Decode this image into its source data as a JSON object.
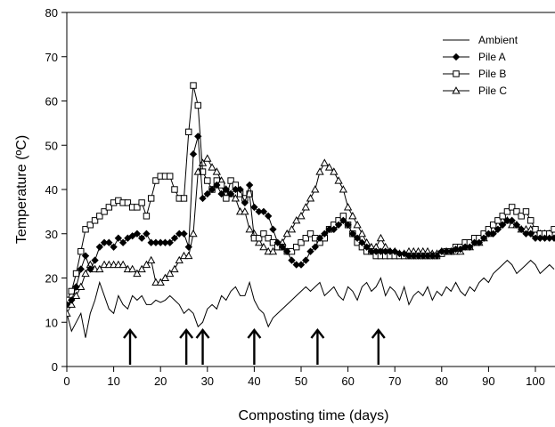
{
  "chart_data": {
    "type": "line",
    "title": "",
    "xlabel": "Composting time (days)",
    "ylabel": "Temperature (ºC)",
    "xlim": [
      0,
      104
    ],
    "ylim": [
      0,
      80
    ],
    "x_ticks": [
      0,
      10,
      20,
      30,
      40,
      50,
      60,
      70,
      80,
      90,
      100
    ],
    "y_ticks": [
      0,
      10,
      20,
      30,
      40,
      50,
      60,
      70,
      80
    ],
    "grid": false,
    "legend_position": "top-right",
    "turning_arrows_days": [
      13.5,
      25.5,
      29,
      40,
      53.5,
      66.5
    ],
    "series": [
      {
        "name": "Ambient",
        "marker": "none",
        "x": [
          0,
          1,
          2,
          3,
          4,
          5,
          6,
          7,
          8,
          9,
          10,
          11,
          12,
          13,
          14,
          15,
          16,
          17,
          18,
          19,
          20,
          21,
          22,
          23,
          24,
          25,
          26,
          27,
          28,
          29,
          30,
          31,
          32,
          33,
          34,
          35,
          36,
          37,
          38,
          39,
          40,
          41,
          42,
          43,
          44,
          45,
          46,
          47,
          48,
          49,
          50,
          51,
          52,
          53,
          54,
          55,
          56,
          57,
          58,
          59,
          60,
          61,
          62,
          63,
          64,
          65,
          66,
          67,
          68,
          69,
          70,
          71,
          72,
          73,
          74,
          75,
          76,
          77,
          78,
          79,
          80,
          81,
          82,
          83,
          84,
          85,
          86,
          87,
          88,
          89,
          90,
          91,
          92,
          93,
          94,
          95,
          96,
          97,
          98,
          99,
          100,
          101,
          102,
          103,
          104
        ],
        "values": [
          12,
          8,
          10,
          12,
          6.5,
          12,
          15,
          19,
          16,
          13,
          12,
          16,
          14,
          13,
          16,
          15,
          16,
          14,
          14,
          15,
          14.5,
          15,
          16,
          15,
          14,
          12,
          13,
          12,
          9,
          10,
          13,
          14,
          13,
          16,
          15,
          17,
          18,
          16,
          16,
          19,
          15,
          13,
          12,
          9,
          11,
          12,
          13,
          14,
          15,
          16,
          17,
          18,
          17,
          18,
          19,
          16,
          17,
          18,
          16,
          15,
          18,
          17,
          15,
          18,
          19,
          17,
          18,
          20,
          16,
          18,
          17,
          15,
          18,
          14,
          16,
          17,
          16,
          18,
          15,
          17,
          16,
          18,
          17,
          19,
          17,
          16,
          18,
          17,
          19,
          20,
          19,
          21,
          22,
          23,
          24,
          23,
          21,
          22,
          23,
          24,
          23,
          21,
          22,
          23,
          22
        ]
      },
      {
        "name": "Pile A",
        "marker": "filled-diamond",
        "x": [
          0,
          1,
          2,
          3,
          4,
          5,
          6,
          7,
          8,
          9,
          10,
          11,
          12,
          13,
          14,
          15,
          16,
          17,
          18,
          19,
          20,
          21,
          22,
          23,
          24,
          25,
          26,
          27,
          28,
          29,
          30,
          31,
          32,
          33,
          34,
          35,
          36,
          37,
          38,
          39,
          40,
          41,
          42,
          43,
          44,
          45,
          46,
          47,
          48,
          49,
          50,
          51,
          52,
          53,
          54,
          55,
          56,
          57,
          58,
          59,
          60,
          61,
          62,
          63,
          64,
          65,
          66,
          67,
          68,
          69,
          70,
          71,
          72,
          73,
          74,
          75,
          76,
          77,
          78,
          79,
          80,
          81,
          82,
          83,
          84,
          85,
          86,
          87,
          88,
          89,
          90,
          91,
          92,
          93,
          94,
          95,
          96,
          97,
          98,
          99,
          100,
          101,
          102,
          103,
          104
        ],
        "values": [
          14,
          15,
          18,
          22,
          25,
          22,
          24,
          27,
          28,
          28,
          27,
          29,
          28,
          29,
          29.5,
          30,
          29,
          30,
          28,
          28,
          28,
          28,
          28,
          29,
          30,
          30,
          27,
          48,
          52,
          38,
          39,
          40,
          41,
          39,
          40,
          39,
          40,
          40,
          37,
          41,
          36,
          35,
          35,
          34,
          31,
          28,
          27,
          26,
          24,
          23,
          23,
          24,
          26,
          27,
          29,
          30,
          31,
          31,
          32,
          33,
          32,
          30,
          29,
          28,
          27,
          26,
          26,
          26,
          26,
          26,
          26,
          25.5,
          25.5,
          25,
          25,
          25,
          25,
          25,
          25,
          25,
          26,
          26,
          26,
          26.5,
          26.5,
          27,
          27,
          28,
          28,
          29,
          30,
          30,
          31,
          32,
          33,
          33,
          32,
          31,
          30,
          30,
          29,
          29,
          29,
          29,
          29
        ]
      },
      {
        "name": "Pile B",
        "marker": "open-square",
        "x": [
          0,
          1,
          2,
          3,
          4,
          5,
          6,
          7,
          8,
          9,
          10,
          11,
          12,
          13,
          14,
          15,
          16,
          17,
          18,
          19,
          20,
          21,
          22,
          23,
          24,
          25,
          26,
          27,
          28,
          29,
          30,
          31,
          32,
          33,
          34,
          35,
          36,
          37,
          38,
          39,
          40,
          41,
          42,
          43,
          44,
          45,
          46,
          47,
          48,
          49,
          50,
          51,
          52,
          53,
          54,
          55,
          56,
          57,
          58,
          59,
          60,
          61,
          62,
          63,
          64,
          65,
          66,
          67,
          68,
          69,
          70,
          71,
          72,
          73,
          74,
          75,
          76,
          77,
          78,
          79,
          80,
          81,
          82,
          83,
          84,
          85,
          86,
          87,
          88,
          89,
          90,
          91,
          92,
          93,
          94,
          95,
          96,
          97,
          98,
          99,
          100,
          101,
          102,
          103,
          104
        ],
        "values": [
          15,
          17,
          21,
          26,
          31,
          32,
          33,
          34,
          35,
          36,
          37,
          37.5,
          37,
          37,
          36,
          36,
          37,
          34,
          38,
          42,
          43,
          43,
          43,
          40,
          38,
          38,
          53,
          63.5,
          59,
          44,
          42,
          40,
          42,
          41,
          38,
          42,
          41,
          39,
          38,
          39,
          29,
          29,
          30,
          29,
          28,
          27,
          27,
          26,
          26,
          27,
          28,
          29,
          30,
          29,
          28,
          29,
          31,
          32,
          33,
          34,
          32,
          30,
          28,
          27,
          26,
          26,
          25,
          25,
          25,
          25,
          25,
          25,
          25,
          25,
          25,
          25,
          25,
          25,
          25,
          25,
          25.5,
          26,
          26,
          27,
          27,
          28,
          28,
          29,
          29,
          30,
          31,
          32,
          33,
          34,
          35,
          36,
          35,
          34,
          35,
          33,
          31,
          30,
          30,
          30,
          31
        ]
      },
      {
        "name": "Pile C",
        "marker": "open-triangle",
        "x": [
          0,
          1,
          2,
          3,
          4,
          5,
          6,
          7,
          8,
          9,
          10,
          11,
          12,
          13,
          14,
          15,
          16,
          17,
          18,
          19,
          20,
          21,
          22,
          23,
          24,
          25,
          26,
          27,
          28,
          29,
          30,
          31,
          32,
          33,
          34,
          35,
          36,
          37,
          38,
          39,
          40,
          41,
          42,
          43,
          44,
          45,
          46,
          47,
          48,
          49,
          50,
          51,
          52,
          53,
          54,
          55,
          56,
          57,
          58,
          59,
          60,
          61,
          62,
          63,
          64,
          65,
          66,
          67,
          68,
          69,
          70,
          71,
          72,
          73,
          74,
          75,
          76,
          77,
          78,
          79,
          80,
          81,
          82,
          83,
          84,
          85,
          86,
          87,
          88,
          89,
          90,
          91,
          92,
          93,
          94,
          95,
          96,
          97,
          98,
          99,
          100,
          101,
          102,
          103,
          104
        ],
        "values": [
          12,
          14,
          16,
          18,
          21,
          23,
          22,
          22,
          23,
          23,
          23,
          23,
          23,
          22,
          22,
          21,
          22,
          23,
          24,
          19,
          19,
          20,
          21,
          22,
          24,
          25,
          25,
          30,
          44,
          46,
          47,
          45,
          44,
          42,
          40,
          39,
          38,
          35,
          35,
          31,
          30,
          28,
          27,
          26,
          26,
          27,
          28,
          30,
          31,
          33,
          34,
          36,
          38,
          40,
          44,
          46,
          45,
          44,
          42,
          40,
          36,
          34,
          32,
          30,
          28,
          27,
          27,
          29,
          27,
          26,
          26,
          25.5,
          25.5,
          26,
          26,
          26,
          26,
          26,
          25.5,
          25.5,
          26,
          26,
          26,
          26,
          26,
          27,
          27,
          28,
          28,
          29,
          30,
          31,
          32,
          33,
          33,
          32,
          32,
          31,
          31,
          31,
          30,
          30,
          30,
          30,
          30
        ]
      }
    ]
  }
}
